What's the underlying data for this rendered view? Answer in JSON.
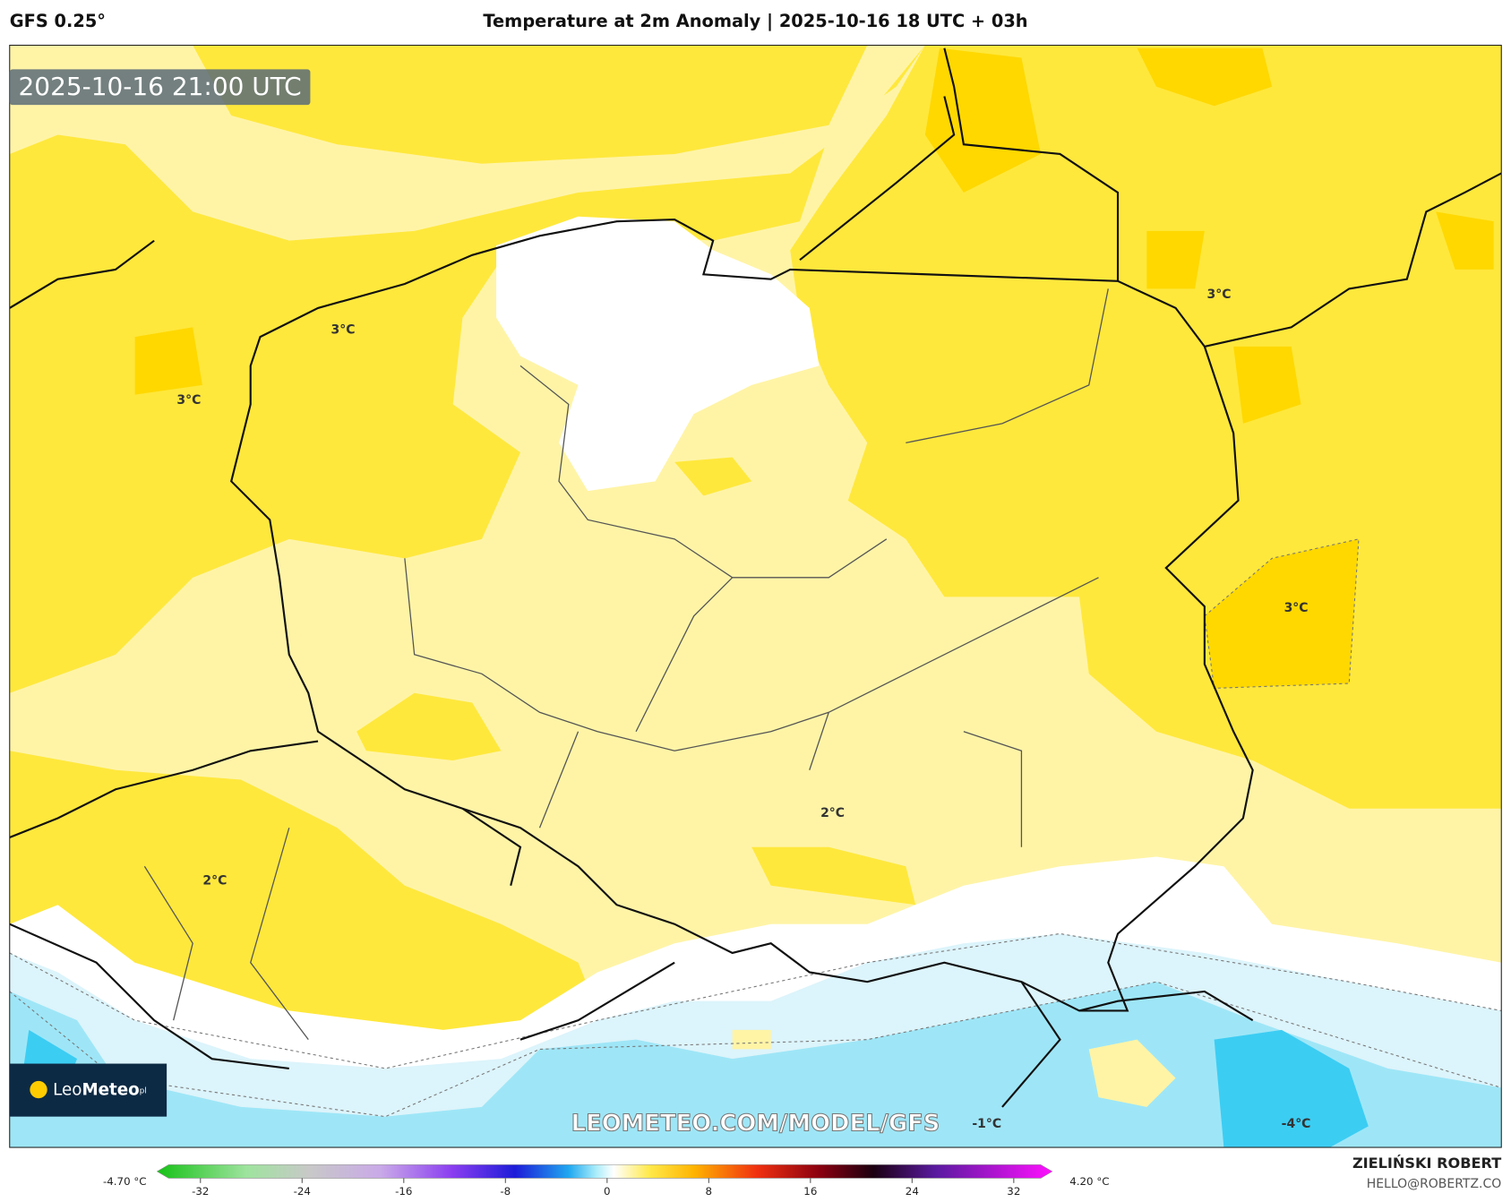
{
  "header": {
    "model": "GFS 0.25°",
    "title": "Temperature at 2m Anomaly | 2025-10-16 18 UTC + 03h"
  },
  "map": {
    "timestamp": "2025-10-16 21:00 UTC",
    "labels": [
      "3°C",
      "3°C",
      "3°C",
      "3°C",
      "2°C",
      "2°C",
      "-1°C",
      "-4°C"
    ],
    "watermark": "LEOMETEO.COM/MODEL/GFS",
    "logo": {
      "name": "Leo",
      "name_bold": "Meteo",
      "suffix": "pl"
    }
  },
  "colorbar": {
    "min_label": "-4.70 °C",
    "max_label": "4.20 °C",
    "ticks": [
      "-32",
      "-24",
      "-16",
      "-8",
      "0",
      "8",
      "16",
      "24",
      "32"
    ]
  },
  "footer": {
    "author": "ZIELIŃSKI ROBERT",
    "email": "HELLO@ROBERTZ.CO"
  }
}
